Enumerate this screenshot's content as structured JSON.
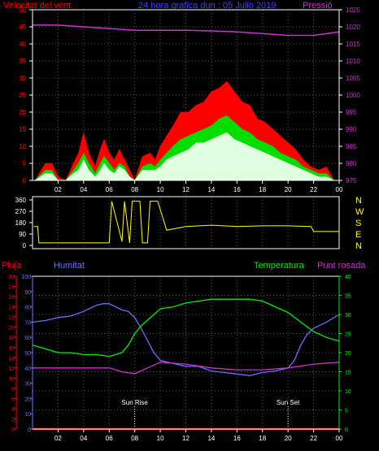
{
  "header": {
    "wind_label": "Velocitat del vent",
    "title": "24 hora grafica dun : 05 Julio 2019",
    "pressure_label": "Pressió"
  },
  "labels": {
    "rain": "Pluja",
    "humidity": "Humitat",
    "temperature": "Temperatura",
    "dew_point": "Punt rosada",
    "sunrise": "Sun Rise",
    "sunset": "Sun Set"
  },
  "colors": {
    "wind_gust": "#ff0000",
    "wind_avg": "#00dd00",
    "wind_speed": "#e0ffe0",
    "pressure": "#cc33cc",
    "direction": "#ffff00",
    "humidity": "#6f6fff",
    "temperature": "#00ee00",
    "dew_point": "#cc33cc",
    "rain": "#ff0000",
    "axes": "#ffffff",
    "grid": "#555555"
  },
  "chart_data": [
    {
      "type": "area",
      "title": "",
      "x_ticks": [
        "02",
        "04",
        "06",
        "08",
        "10",
        "12",
        "14",
        "16",
        "18",
        "20",
        "22",
        "00"
      ],
      "xlim": [
        0,
        24
      ],
      "y_left": {
        "label": "Velocitat del vent",
        "ticks": [
          "0",
          "5",
          "10",
          "15",
          "20",
          "25",
          "30",
          "35",
          "40",
          "45",
          "50"
        ],
        "lim": [
          0,
          50
        ]
      },
      "y_right": {
        "label": "Pressió",
        "ticks": [
          "975",
          "980",
          "985",
          "990",
          "995",
          "1000",
          "1005",
          "1010",
          "1015",
          "1020",
          "1025"
        ],
        "lim": [
          975,
          1025
        ]
      },
      "series": [
        {
          "name": "gust",
          "x": [
            0.2,
            1.0,
            1.5,
            2.0,
            2.6,
            3.2,
            3.6,
            4.0,
            4.4,
            4.9,
            5.3,
            5.6,
            6.0,
            6.4,
            6.8,
            7.2,
            7.6,
            8.0,
            8.6,
            9.2,
            9.6,
            10.0,
            10.5,
            11.0,
            11.6,
            12.2,
            12.8,
            13.4,
            14.0,
            14.6,
            15.2,
            15.8,
            16.4,
            17.0,
            17.6,
            18.2,
            18.8,
            19.4,
            20.0,
            20.6,
            21.2,
            21.8,
            22.4,
            23.0,
            23.6
          ],
          "values": [
            0,
            5,
            5,
            1,
            0,
            5,
            8,
            14,
            8,
            4,
            9,
            12,
            8,
            6,
            9,
            6,
            3,
            0,
            7,
            8,
            6,
            10,
            13,
            16,
            20,
            20,
            22,
            23,
            26,
            27,
            29,
            26,
            23,
            22,
            18,
            17,
            15,
            13,
            11,
            9,
            6,
            4,
            3,
            4,
            0
          ]
        },
        {
          "name": "average",
          "x": [
            0.2,
            1.0,
            1.5,
            2.0,
            2.6,
            3.2,
            3.6,
            4.0,
            4.4,
            4.9,
            5.3,
            5.6,
            6.0,
            6.4,
            6.8,
            7.2,
            7.6,
            8.0,
            8.6,
            9.2,
            9.6,
            10.0,
            10.5,
            11.0,
            11.6,
            12.2,
            12.8,
            13.4,
            14.0,
            14.6,
            15.2,
            15.8,
            16.4,
            17.0,
            17.6,
            18.2,
            18.8,
            19.4,
            20.0,
            20.6,
            21.2,
            21.8,
            22.4,
            23.0,
            23.6
          ],
          "values": [
            0,
            3,
            3,
            0,
            0,
            3,
            5,
            8,
            5,
            2,
            5,
            7,
            5,
            3,
            5,
            4,
            1,
            0,
            4,
            5,
            4,
            6,
            8,
            10,
            12,
            13,
            14,
            15,
            16,
            18,
            19,
            17,
            15,
            14,
            12,
            11,
            10,
            8,
            7,
            6,
            4,
            3,
            2,
            2,
            0
          ]
        },
        {
          "name": "speed",
          "x": [
            0.2,
            1.0,
            1.5,
            2.0,
            2.6,
            3.2,
            3.6,
            4.0,
            4.4,
            4.9,
            5.3,
            5.6,
            6.0,
            6.4,
            6.8,
            7.2,
            7.6,
            8.0,
            8.6,
            9.2,
            9.6,
            10.0,
            10.5,
            11.0,
            11.6,
            12.2,
            12.8,
            13.4,
            14.0,
            14.6,
            15.2,
            15.8,
            16.4,
            17.0,
            17.6,
            18.2,
            18.8,
            19.4,
            20.0,
            20.6,
            21.2,
            21.8,
            22.4,
            23.0,
            23.6
          ],
          "values": [
            0,
            2,
            2,
            0,
            0,
            2,
            3,
            6,
            3,
            1,
            3,
            5,
            3,
            2,
            4,
            3,
            1,
            0,
            3,
            3,
            3,
            4,
            6,
            7,
            8,
            9,
            11,
            11,
            12,
            13,
            14,
            12,
            11,
            10,
            9,
            8,
            7,
            6,
            5,
            4,
            3,
            2,
            1,
            1,
            0
          ]
        },
        {
          "name": "pressure",
          "axis": "right",
          "x": [
            0,
            2,
            4,
            6,
            8,
            10,
            12,
            14,
            16,
            18,
            20,
            22,
            24
          ],
          "values": [
            1020.5,
            1020.5,
            1020.0,
            1019.5,
            1019.0,
            1019.0,
            1019.0,
            1018.8,
            1018.5,
            1018.0,
            1017.5,
            1017.5,
            1018.5
          ]
        }
      ]
    },
    {
      "type": "line",
      "title": "",
      "x_ticks": [
        "02",
        "04",
        "06",
        "08",
        "10",
        "12",
        "14",
        "16",
        "18",
        "20",
        "22",
        "00"
      ],
      "xlim": [
        0,
        24
      ],
      "y_left": {
        "ticks": [
          "360",
          "270",
          "180",
          "90",
          "0"
        ],
        "lim": [
          0,
          360
        ]
      },
      "y_right_labels": [
        "N",
        "W",
        "S",
        "E",
        "N"
      ],
      "series": [
        {
          "name": "direction",
          "x": [
            0.1,
            0.4,
            0.5,
            2.0,
            4.0,
            6.0,
            6.2,
            7.0,
            7.2,
            7.6,
            7.8,
            8.4,
            8.6,
            9.0,
            9.2,
            9.8,
            10.5,
            12,
            14,
            16,
            18,
            20,
            21.8,
            22,
            24
          ],
          "values": [
            150,
            150,
            20,
            20,
            20,
            20,
            350,
            30,
            350,
            20,
            350,
            350,
            20,
            20,
            350,
            350,
            120,
            150,
            160,
            150,
            155,
            155,
            150,
            110,
            110
          ]
        }
      ]
    },
    {
      "type": "line",
      "title": "",
      "x_ticks": [
        "02",
        "04",
        "06",
        "08",
        "10",
        "12",
        "14",
        "16",
        "18",
        "20",
        "22",
        "00"
      ],
      "xlim": [
        0,
        24
      ],
      "axes": [
        {
          "position": "left-outer",
          "label": "Pluja",
          "ticks": [
            "0",
            "2",
            "4",
            "6",
            "8",
            "10",
            "12",
            "14",
            "16",
            "18",
            "20",
            "22",
            "24",
            "26",
            "28",
            "30"
          ],
          "lim": [
            0,
            30
          ]
        },
        {
          "position": "left-inner",
          "label": "Humitat",
          "ticks": [
            "0",
            "10",
            "20",
            "30",
            "40",
            "50",
            "60",
            "70",
            "80",
            "90",
            "100"
          ],
          "lim": [
            0,
            100
          ]
        },
        {
          "position": "right",
          "label": "Temperatura",
          "ticks": [
            "0",
            "5",
            "10",
            "15",
            "20",
            "25",
            "30",
            "35",
            "40"
          ],
          "lim": [
            0,
            40
          ]
        }
      ],
      "annotations": [
        {
          "label": "Sun Rise",
          "x": 8.0
        },
        {
          "label": "Sun Set",
          "x": 20.0
        }
      ],
      "series": [
        {
          "name": "humidity",
          "axis": "left-inner",
          "x": [
            0,
            1,
            2,
            3,
            4,
            5,
            5.5,
            6,
            6.5,
            7,
            7.5,
            8,
            8.5,
            9,
            9.5,
            10,
            11,
            12,
            13,
            14,
            15,
            16,
            17,
            18,
            19,
            20,
            20.5,
            21,
            21.5,
            22,
            22.5,
            23,
            24
          ],
          "values": [
            70,
            71,
            73,
            74,
            77,
            81,
            82,
            82,
            80,
            78,
            77,
            73,
            66,
            58,
            50,
            45,
            43,
            41,
            41,
            38,
            37,
            36,
            35,
            37,
            38,
            40,
            45,
            55,
            62,
            66,
            68,
            70,
            75
          ]
        },
        {
          "name": "temperature",
          "axis": "right",
          "x": [
            0,
            1,
            2,
            3,
            4,
            5,
            6,
            7,
            7.5,
            8,
            8.5,
            9,
            9.5,
            10,
            11,
            12,
            13,
            14,
            15,
            16,
            17,
            18,
            19,
            20,
            21,
            22,
            23,
            24
          ],
          "values": [
            22,
            21,
            20,
            20,
            19.5,
            19.5,
            19,
            20,
            22,
            25,
            27,
            28.5,
            30,
            31.5,
            32,
            33,
            33.5,
            34,
            34,
            34,
            34,
            33.5,
            32,
            30.5,
            28,
            25.5,
            24,
            23
          ]
        },
        {
          "name": "dew_point",
          "axis": "right",
          "x": [
            0,
            2,
            4,
            6,
            7,
            8,
            9,
            10,
            12,
            14,
            16,
            18,
            20,
            22,
            24
          ],
          "values": [
            16,
            16,
            16,
            16,
            15,
            14.5,
            16,
            17.5,
            17,
            16,
            15.5,
            15.5,
            16,
            17,
            17.5
          ]
        },
        {
          "name": "rain",
          "axis": "left-outer",
          "x": [
            0,
            24
          ],
          "values": [
            0,
            0
          ]
        }
      ]
    }
  ]
}
